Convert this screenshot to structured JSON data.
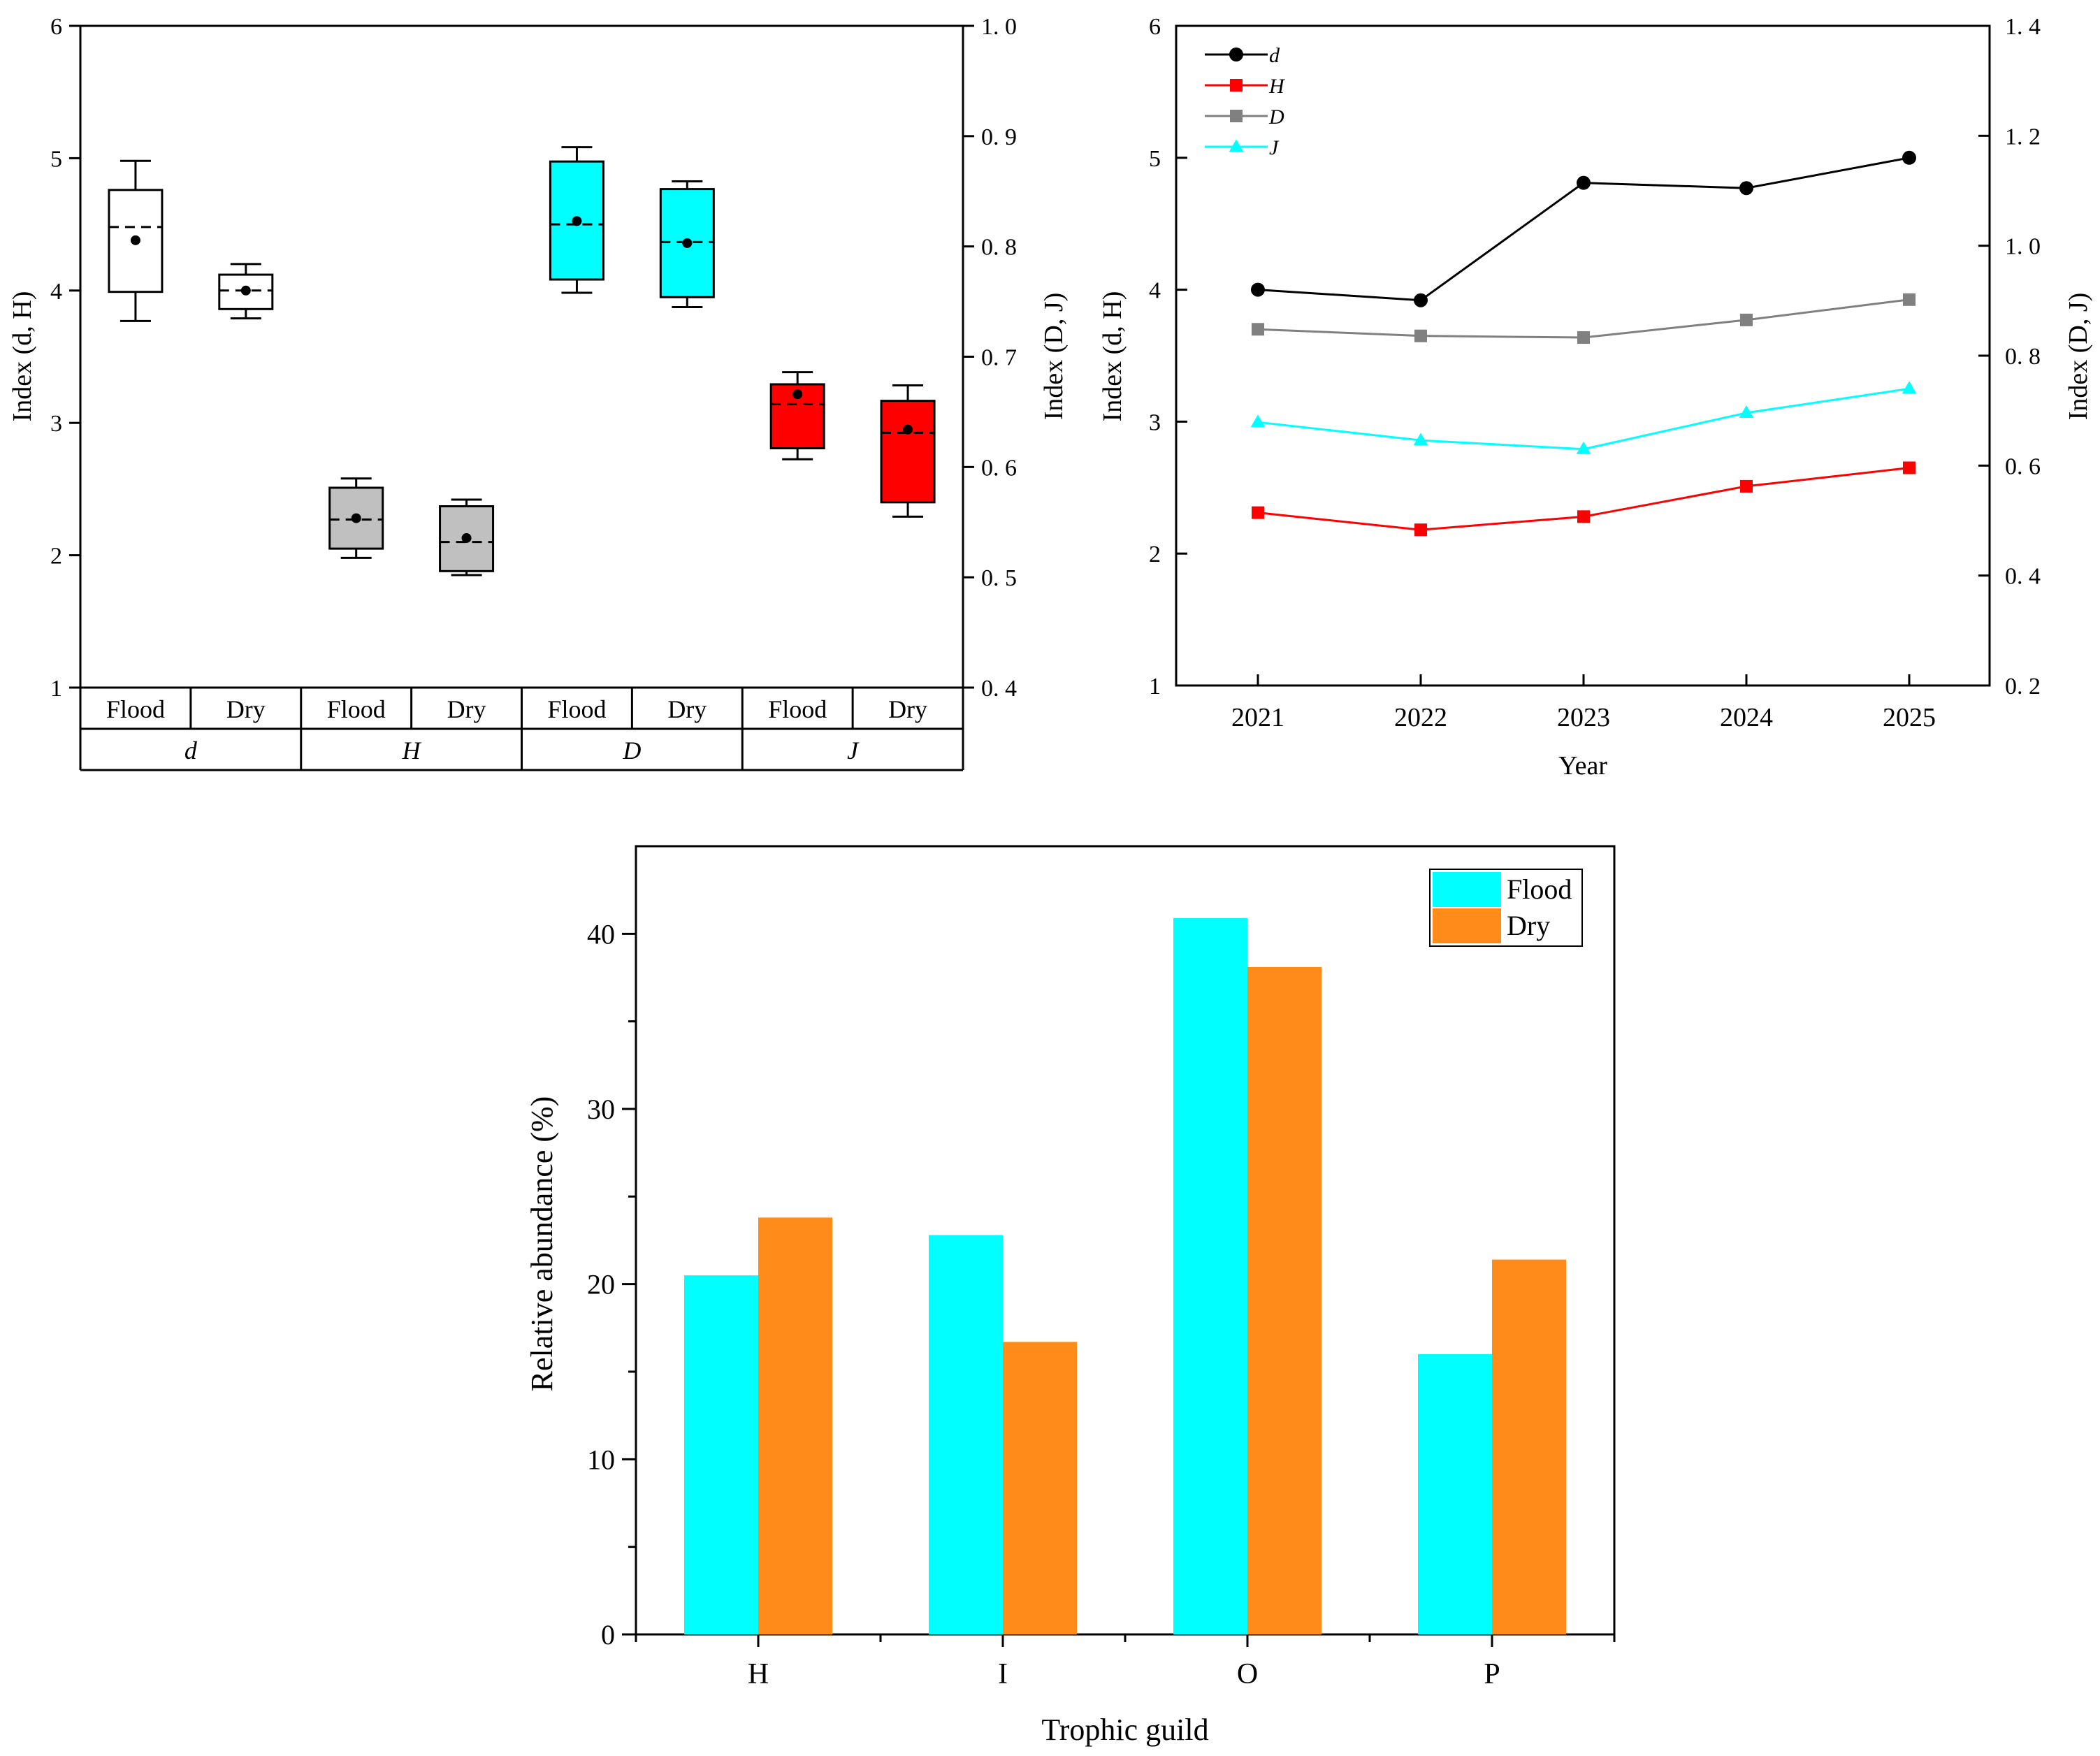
{
  "chart_data": [
    {
      "type": "box",
      "id": "panel-a",
      "ylabel_left": "Index (d, H)",
      "ylabel_right": "Index (D, J)",
      "ylim_left": [
        1,
        6
      ],
      "ylim_right": [
        0.4,
        1.0
      ],
      "yticks_left": [
        "1",
        "2",
        "3",
        "4",
        "5",
        "6"
      ],
      "yticks_right": [
        "0. 4",
        "0. 5",
        "0. 6",
        "0. 7",
        "0. 8",
        "0. 9",
        "1. 0"
      ],
      "season_labels": [
        "Flood",
        "Dry",
        "Flood",
        "Dry",
        "Flood",
        "Dry",
        "Flood",
        "Dry"
      ],
      "index_labels": [
        "d",
        "H",
        "D",
        "J"
      ],
      "boxes": [
        {
          "index": "d",
          "season": "Flood",
          "axis": "left",
          "whisker_low": 3.77,
          "q1": 3.99,
          "median": 4.48,
          "q3": 4.76,
          "whisker_high": 4.98,
          "mean": 4.38,
          "color": "#ffffff"
        },
        {
          "index": "d",
          "season": "Dry",
          "axis": "left",
          "whisker_low": 3.79,
          "q1": 3.86,
          "median": 4.0,
          "q3": 4.12,
          "whisker_high": 4.2,
          "mean": 4.0,
          "color": "#ffffff"
        },
        {
          "index": "H",
          "season": "Flood",
          "axis": "left",
          "whisker_low": 1.98,
          "q1": 2.05,
          "median": 2.27,
          "q3": 2.51,
          "whisker_high": 2.58,
          "mean": 2.28,
          "color": "#c0c0c0"
        },
        {
          "index": "H",
          "season": "Dry",
          "axis": "left",
          "whisker_low": 1.85,
          "q1": 1.88,
          "median": 2.1,
          "q3": 2.37,
          "whisker_high": 2.42,
          "mean": 2.13,
          "color": "#c0c0c0"
        },
        {
          "index": "D",
          "season": "Flood",
          "axis": "right",
          "whisker_low": 0.758,
          "q1": 0.77,
          "median": 0.82,
          "q3": 0.877,
          "whisker_high": 0.89,
          "mean": 0.823,
          "color": "#00ffff"
        },
        {
          "index": "D",
          "season": "Dry",
          "axis": "right",
          "whisker_low": 0.745,
          "q1": 0.754,
          "median": 0.804,
          "q3": 0.852,
          "whisker_high": 0.859,
          "mean": 0.803,
          "color": "#00ffff"
        },
        {
          "index": "J",
          "season": "Flood",
          "axis": "right",
          "whisker_low": 0.607,
          "q1": 0.617,
          "median": 0.657,
          "q3": 0.675,
          "whisker_high": 0.686,
          "mean": 0.666,
          "color": "#ff0000"
        },
        {
          "index": "J",
          "season": "Dry",
          "axis": "right",
          "whisker_low": 0.555,
          "q1": 0.568,
          "median": 0.631,
          "q3": 0.66,
          "whisker_high": 0.674,
          "mean": 0.634,
          "color": "#ff0000"
        }
      ]
    },
    {
      "type": "line",
      "id": "panel-b",
      "xlabel": "Year",
      "ylabel_left": "Index (d, H)",
      "ylabel_right": "Index (D, J)",
      "ylim_left": [
        1,
        6
      ],
      "ylim_right": [
        0.2,
        1.4
      ],
      "yticks_left": [
        "1",
        "2",
        "3",
        "4",
        "5",
        "6"
      ],
      "yticks_right": [
        "0. 2",
        "0. 4",
        "0. 6",
        "0. 8",
        "1. 0",
        "1. 2",
        "1. 4"
      ],
      "categories": [
        "2021",
        "2022",
        "2023",
        "2024",
        "2025"
      ],
      "legend_position": "top-left",
      "series": [
        {
          "name": "d",
          "axis": "left",
          "values": [
            4.0,
            3.92,
            4.81,
            4.77,
            5.0
          ],
          "color": "#000000",
          "marker": "circle"
        },
        {
          "name": "H",
          "axis": "left",
          "values": [
            2.31,
            2.18,
            2.28,
            2.51,
            2.65
          ],
          "color": "#ff0000",
          "marker": "square"
        },
        {
          "name": "D",
          "axis": "right",
          "values": [
            0.848,
            0.836,
            0.833,
            0.865,
            0.902
          ],
          "color": "#808080",
          "marker": "square"
        },
        {
          "name": "J",
          "axis": "right",
          "values": [
            0.679,
            0.646,
            0.63,
            0.696,
            0.74
          ],
          "color": "#00ffff",
          "marker": "triangle"
        }
      ]
    },
    {
      "type": "bar",
      "id": "panel-c",
      "xlabel": "Trophic guild",
      "ylabel": "Relative abundance (%)",
      "ylim": [
        0,
        45
      ],
      "yticks": [
        "0",
        "10",
        "20",
        "30",
        "40"
      ],
      "categories": [
        "H",
        "I",
        "O",
        "P"
      ],
      "legend_position": "top-right",
      "series": [
        {
          "name": "Flood",
          "values": [
            20.5,
            22.8,
            40.9,
            16.0
          ],
          "color": "#00ffff"
        },
        {
          "name": "Dry",
          "values": [
            23.8,
            16.7,
            38.1,
            21.4
          ],
          "color": "#ff8c1a"
        }
      ]
    }
  ]
}
